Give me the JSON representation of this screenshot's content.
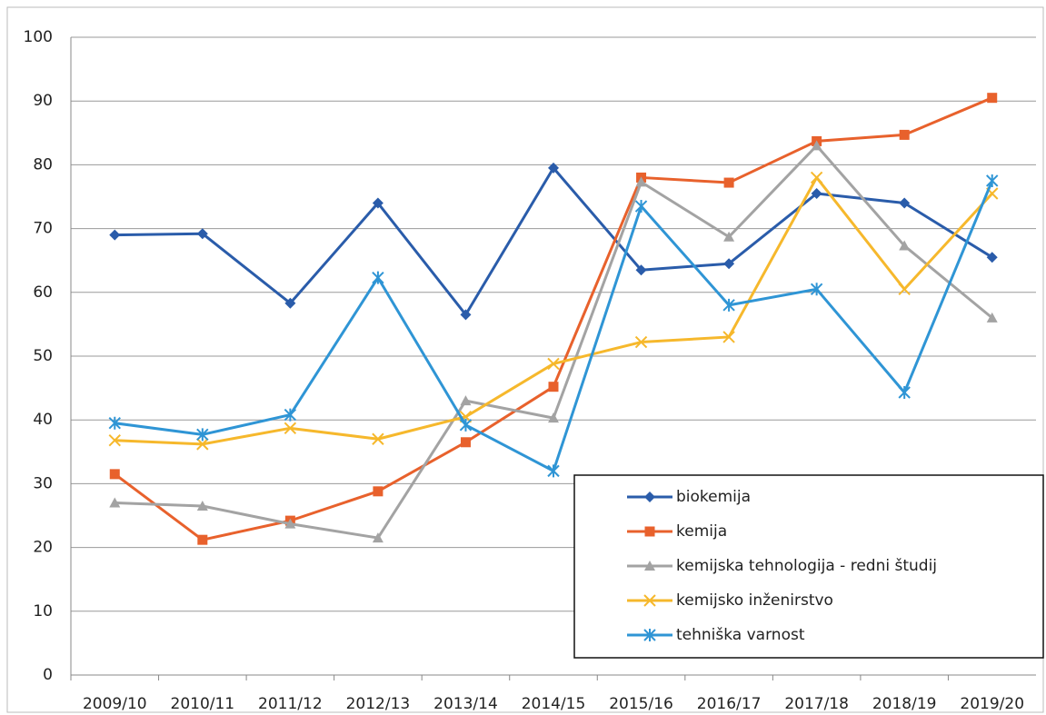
{
  "chart_data": {
    "type": "line",
    "categories": [
      "2009/10",
      "2010/11",
      "2011/12",
      "2012/13",
      "2013/14",
      "2014/15",
      "2015/16",
      "2016/17",
      "2017/18",
      "2018/19",
      "2019/20"
    ],
    "series": [
      {
        "name": "biokemija",
        "color": "#2a5caa",
        "marker": "diamond",
        "values": [
          69,
          69.2,
          58.3,
          74,
          56.5,
          79.5,
          63.5,
          64.5,
          75.5,
          74,
          65.5
        ]
      },
      {
        "name": "kemija",
        "color": "#e8612c",
        "marker": "square",
        "values": [
          31.5,
          21.2,
          24.2,
          28.8,
          36.5,
          45.2,
          78,
          77.2,
          83.7,
          84.7,
          90.5
        ]
      },
      {
        "name": "kemijska tehnologija - redni študij",
        "color": "#a3a3a3",
        "marker": "triangle",
        "values": [
          27,
          26.5,
          23.7,
          21.5,
          43,
          40.3,
          77.3,
          68.7,
          83,
          67.3,
          56
        ]
      },
      {
        "name": "kemijsko inženirstvo",
        "color": "#f6b82c",
        "marker": "x",
        "values": [
          36.8,
          36.2,
          38.7,
          37,
          40.5,
          48.8,
          52.2,
          53,
          78,
          60.5,
          75.5
        ]
      },
      {
        "name": "tehniška varnost",
        "color": "#2f95d5",
        "marker": "star",
        "values": [
          39.5,
          37.7,
          40.8,
          62.3,
          39.2,
          32,
          73.5,
          58,
          60.5,
          44.3,
          77.5
        ]
      }
    ],
    "ylim": [
      0,
      100
    ],
    "yticks": [
      0,
      10,
      20,
      30,
      40,
      50,
      60,
      70,
      80,
      90,
      100
    ],
    "grid": true,
    "legend": "lower right"
  }
}
